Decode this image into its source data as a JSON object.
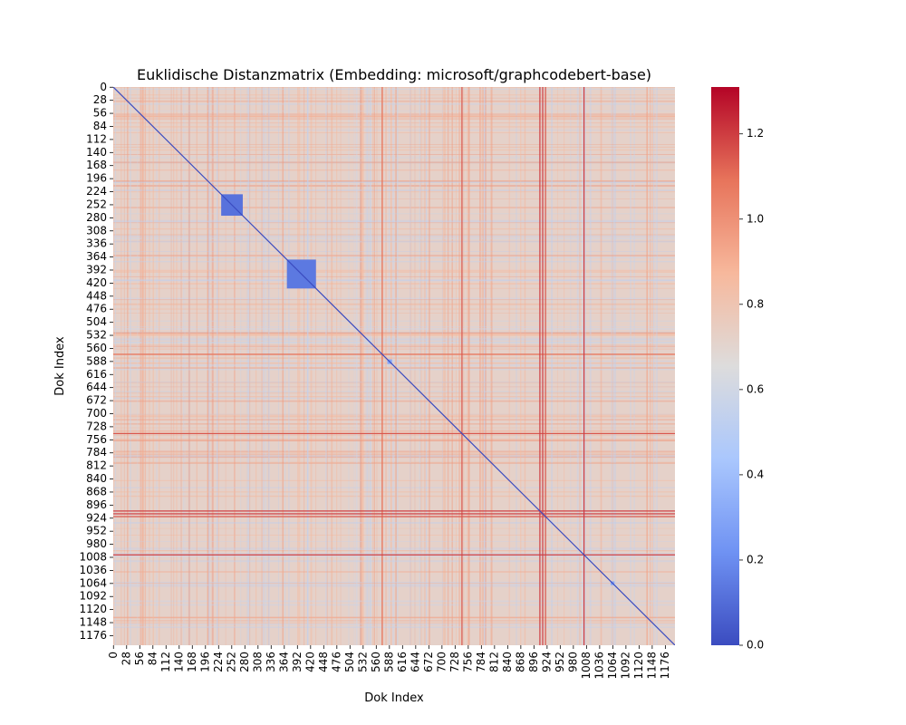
{
  "chart_data": {
    "type": "heatmap",
    "title": "Euklidische Distanzmatrix (Embedding: microsoft/graphcodebert-base)",
    "xlabel": "Dok Index",
    "ylabel": "Dok Index",
    "n_docs": 1197,
    "x_ticks": [
      0,
      28,
      56,
      84,
      112,
      140,
      168,
      196,
      224,
      252,
      280,
      308,
      336,
      364,
      392,
      420,
      448,
      476,
      504,
      532,
      560,
      588,
      616,
      644,
      672,
      700,
      728,
      756,
      784,
      812,
      840,
      868,
      896,
      924,
      952,
      980,
      1008,
      1036,
      1064,
      1092,
      1120,
      1148,
      1176
    ],
    "y_ticks": [
      0,
      28,
      56,
      84,
      112,
      140,
      168,
      196,
      224,
      252,
      280,
      308,
      336,
      364,
      392,
      420,
      448,
      476,
      504,
      532,
      560,
      588,
      616,
      644,
      672,
      700,
      728,
      756,
      784,
      812,
      840,
      868,
      896,
      924,
      952,
      980,
      1008,
      1036,
      1064,
      1092,
      1120,
      1148,
      1176
    ],
    "colorbar": {
      "colormap": "coolwarm",
      "min": 0.0,
      "max": 1.31,
      "ticks": [
        0.0,
        0.2,
        0.4,
        0.6,
        0.8,
        1.0,
        1.2
      ],
      "tick_labels": [
        "0.0",
        "0.2",
        "0.4",
        "0.6",
        "0.8",
        "1.0",
        "1.2"
      ],
      "colors": [
        "#3b4cc0",
        "#6f92f3",
        "#aac7fd",
        "#dddcdc",
        "#f7b89c",
        "#e7745b",
        "#b40426"
      ]
    },
    "background_distance": 0.72,
    "diagonal_distance": 0.0,
    "low_distance_blocks": [
      {
        "start": 230,
        "end": 276,
        "value": 0.12
      },
      {
        "start": 370,
        "end": 432,
        "value": 0.14
      },
      {
        "start": 584,
        "end": 594,
        "value": 0.3
      },
      {
        "start": 1060,
        "end": 1068,
        "value": 0.3
      }
    ],
    "high_distance_lines": [
      {
        "index": 572,
        "value": 1.1
      },
      {
        "index": 742,
        "value": 1.15
      },
      {
        "index": 908,
        "value": 1.2
      },
      {
        "index": 914,
        "value": 1.2
      },
      {
        "index": 920,
        "value": 1.15
      },
      {
        "index": 1002,
        "value": 1.2
      }
    ],
    "grid": false
  }
}
